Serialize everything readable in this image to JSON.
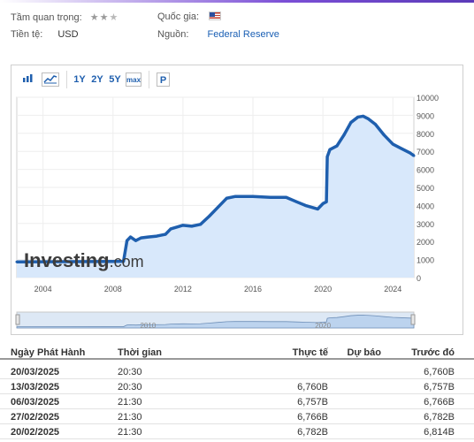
{
  "meta": {
    "importance_label": "Tầm quan trọng:",
    "importance_stars": 2,
    "importance_max": 3,
    "country_label": "Quốc gia:",
    "country_flag": "us-flag-icon",
    "currency_label": "Tiền tệ:",
    "currency_value": "USD",
    "source_label": "Nguồn:",
    "source_value": "Federal Reserve"
  },
  "toolbar": {
    "bar_chart_icon": "bar-chart-icon",
    "line_chart_icon": "line-chart-icon",
    "ranges": [
      "1Y",
      "2Y",
      "5Y",
      "max"
    ],
    "p_label": "P"
  },
  "chart_data": {
    "type": "area",
    "x": [
      2002.5,
      2008.6,
      2008.8,
      2009.0,
      2009.3,
      2009.6,
      2010.0,
      2010.5,
      2011.0,
      2011.3,
      2012.0,
      2012.5,
      2013.0,
      2013.5,
      2014.0,
      2014.5,
      2015.0,
      2016.0,
      2017.0,
      2017.9,
      2018.5,
      2019.0,
      2019.7,
      2020.0,
      2020.2,
      2020.25,
      2020.4,
      2020.8,
      2021.2,
      2021.6,
      2022.0,
      2022.3,
      2022.6,
      2023.0,
      2023.5,
      2024.0,
      2024.5,
      2025.0,
      2025.2
    ],
    "y": [
      870,
      900,
      2050,
      2250,
      2050,
      2200,
      2250,
      2300,
      2400,
      2700,
      2900,
      2850,
      2950,
      3400,
      3900,
      4400,
      4500,
      4500,
      4450,
      4450,
      4200,
      4000,
      3800,
      4100,
      4200,
      6700,
      7100,
      7300,
      7900,
      8600,
      8900,
      8950,
      8800,
      8500,
      7900,
      7400,
      7150,
      6900,
      6760
    ],
    "xlim": [
      2002.5,
      2025.2
    ],
    "ylim": [
      0,
      10000
    ],
    "x_ticks": [
      "2004",
      "2008",
      "2012",
      "2016",
      "2020",
      "2024"
    ],
    "x_tick_values": [
      2004,
      2008,
      2012,
      2016,
      2020,
      2024
    ],
    "y_ticks": [
      "10000",
      "9000",
      "8000",
      "7000",
      "6000",
      "5000",
      "4000",
      "3000",
      "2000",
      "1000",
      "0"
    ],
    "y_tick_values": [
      10000,
      9000,
      8000,
      7000,
      6000,
      5000,
      4000,
      3000,
      2000,
      1000,
      0
    ],
    "watermark": "Investing",
    "watermark_suffix": ".com",
    "navigator_labels": [
      "2010",
      "2020"
    ],
    "line_color": "#1f5fae",
    "fill_color": "#d8e8fb",
    "grid": true
  },
  "table": {
    "headers": [
      "Ngày Phát Hành",
      "Thời gian",
      "Thực tế",
      "Dự báo",
      "Trước đó"
    ],
    "rows": [
      [
        "20/03/2025",
        "20:30",
        "",
        "",
        "6,760B"
      ],
      [
        "13/03/2025",
        "20:30",
        "6,760B",
        "",
        "6,757B"
      ],
      [
        "06/03/2025",
        "21:30",
        "6,757B",
        "",
        "6,766B"
      ],
      [
        "27/02/2025",
        "21:30",
        "6,766B",
        "",
        "6,782B"
      ],
      [
        "20/02/2025",
        "21:30",
        "6,782B",
        "",
        "6,814B"
      ]
    ]
  }
}
